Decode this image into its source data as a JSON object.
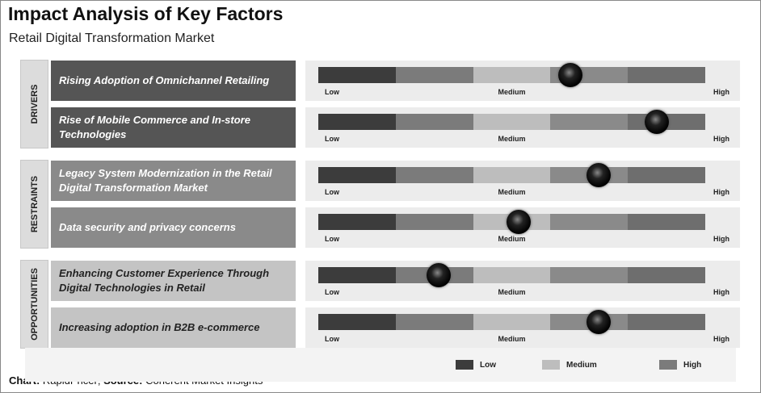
{
  "chart_data": {
    "type": "impact",
    "title": "Impact Analysis of Key Factors",
    "subtitle": "Retail Digital Transformation Market",
    "xlim": [
      0,
      5
    ],
    "scale_labels": [
      "Low",
      "Medium",
      "High"
    ],
    "segment_colors": [
      "#3c3c3c",
      "#7b7b7b",
      "#bdbdbd",
      "#8a8a8a",
      "#6e6e6e"
    ],
    "groups": [
      {
        "name": "DRIVERS",
        "color": "#555555",
        "text_color": "#ffffff",
        "factors": [
          {
            "label": "Rising Adoption of Omnichannel Retailing",
            "impact": 3.26
          },
          {
            "label": "Rise of Mobile Commerce and In-store Technologies",
            "impact": 4.37
          }
        ]
      },
      {
        "name": "RESTRAINTS",
        "color": "#8a8a8a",
        "text_color": "#ffffff",
        "factors": [
          {
            "label": "Legacy System Modernization in the Retail Digital Transformation Market",
            "impact": 3.62
          },
          {
            "label": "Data security and privacy concerns",
            "impact": 2.59
          }
        ]
      },
      {
        "name": "OPPORTUNITIES",
        "color": "#c4c4c4",
        "text_color": "#222222",
        "factors": [
          {
            "label": "Enhancing Customer Experience Through Digital Technologies in Retail",
            "impact": 1.56
          },
          {
            "label": "Increasing adoption in B2B e-commerce",
            "impact": 3.62
          }
        ]
      }
    ],
    "legend": [
      {
        "name": "Low",
        "color": "#3c3c3c"
      },
      {
        "name": "Medium",
        "color": "#bdbdbd"
      },
      {
        "name": "High",
        "color": "#7b7b7b"
      }
    ],
    "footer": [
      "Chart:",
      "RapidPricer;",
      "Source:",
      "Coherent Market Insights"
    ]
  }
}
